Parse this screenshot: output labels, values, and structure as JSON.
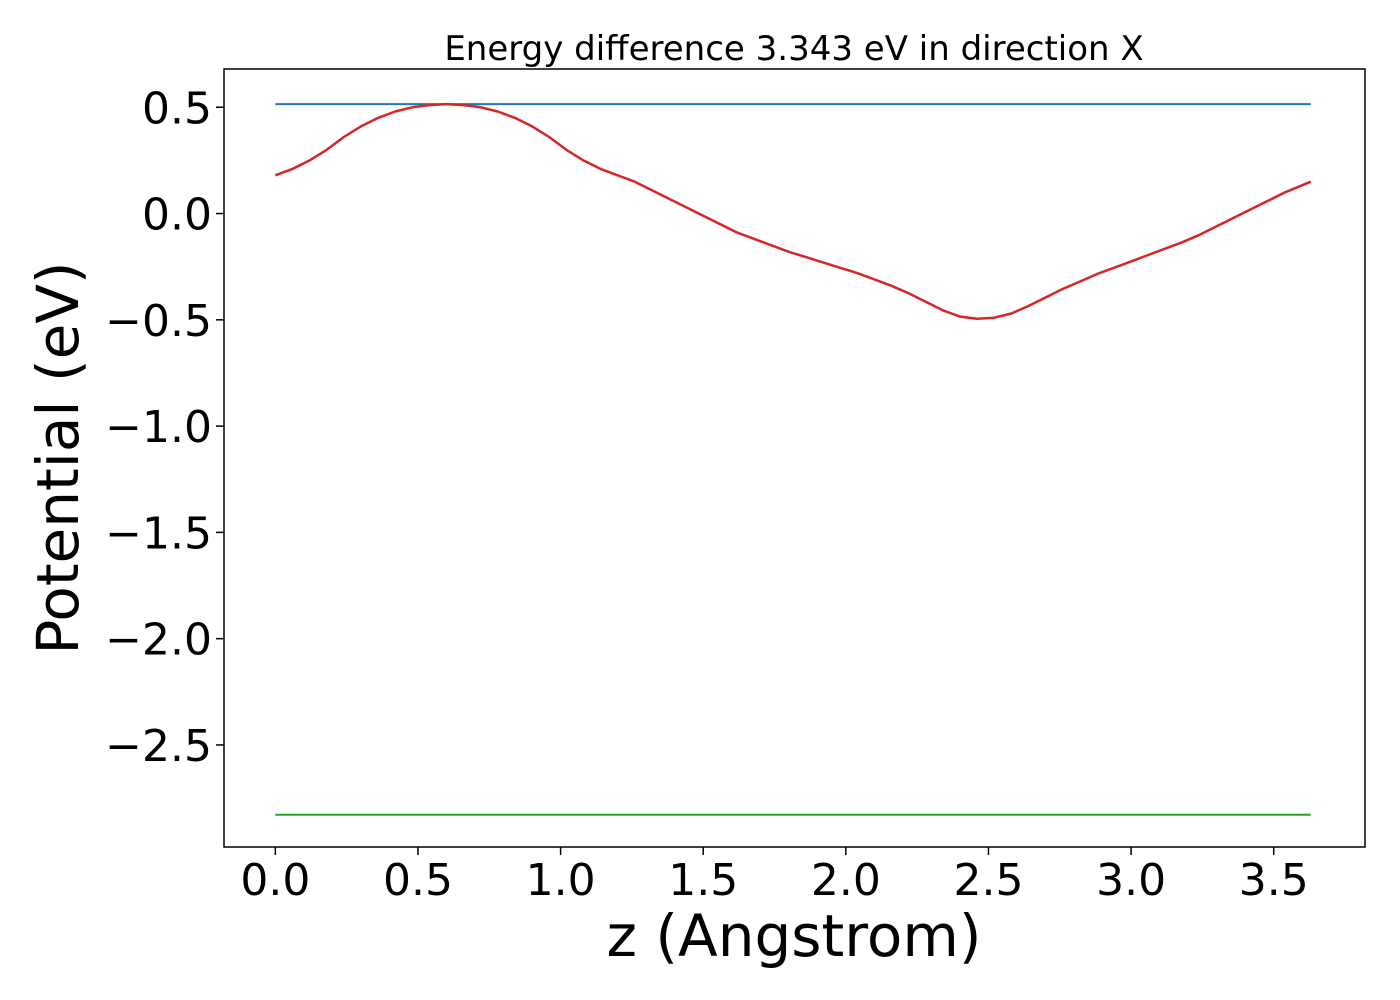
{
  "chart_data": {
    "type": "line",
    "title": "Energy difference 3.343 eV in direction X",
    "xlabel": "z (Angstrom)",
    "ylabel": "Potential (eV)",
    "xlim": [
      -0.18,
      3.82
    ],
    "ylim": [
      -2.98,
      0.68
    ],
    "xticks": [
      0.0,
      0.5,
      1.0,
      1.5,
      2.0,
      2.5,
      3.0,
      3.5
    ],
    "yticks": [
      0.5,
      0.0,
      -0.5,
      -1.0,
      -1.5,
      -2.0,
      -2.5
    ],
    "xtick_labels": [
      "0.0",
      "0.5",
      "1.0",
      "1.5",
      "2.0",
      "2.5",
      "3.0",
      "3.5"
    ],
    "ytick_labels": [
      "0.5",
      "0.0",
      "−0.5",
      "−1.0",
      "−1.5",
      "−2.0",
      "−2.5"
    ],
    "grid": false,
    "series": [
      {
        "color": "#1f77b4",
        "x": [
          0.0,
          3.63
        ],
        "y": [
          0.515,
          0.515
        ]
      },
      {
        "color": "#2ca02c",
        "x": [
          0.0,
          3.63
        ],
        "y": [
          -2.828,
          -2.828
        ]
      },
      {
        "color": "#d62728",
        "x": [
          0.0,
          0.06,
          0.12,
          0.18,
          0.24,
          0.3,
          0.36,
          0.42,
          0.48,
          0.54,
          0.6,
          0.66,
          0.72,
          0.78,
          0.84,
          0.9,
          0.96,
          1.02,
          1.08,
          1.14,
          1.2,
          1.26,
          1.32,
          1.38,
          1.44,
          1.5,
          1.56,
          1.62,
          1.68,
          1.74,
          1.8,
          1.86,
          1.92,
          1.98,
          2.04,
          2.1,
          2.16,
          2.22,
          2.28,
          2.34,
          2.4,
          2.46,
          2.52,
          2.58,
          2.64,
          2.7,
          2.76,
          2.82,
          2.88,
          2.94,
          3.0,
          3.06,
          3.12,
          3.18,
          3.24,
          3.3,
          3.36,
          3.42,
          3.48,
          3.54,
          3.63
        ],
        "y": [
          0.18,
          0.21,
          0.25,
          0.3,
          0.36,
          0.41,
          0.45,
          0.48,
          0.5,
          0.51,
          0.515,
          0.51,
          0.5,
          0.48,
          0.45,
          0.41,
          0.36,
          0.3,
          0.25,
          0.21,
          0.18,
          0.15,
          0.11,
          0.07,
          0.03,
          -0.01,
          -0.05,
          -0.09,
          -0.12,
          -0.15,
          -0.18,
          -0.205,
          -0.23,
          -0.255,
          -0.28,
          -0.31,
          -0.34,
          -0.375,
          -0.415,
          -0.455,
          -0.485,
          -0.495,
          -0.49,
          -0.47,
          -0.435,
          -0.395,
          -0.355,
          -0.32,
          -0.285,
          -0.255,
          -0.225,
          -0.195,
          -0.165,
          -0.135,
          -0.1,
          -0.06,
          -0.02,
          0.02,
          0.06,
          0.1,
          0.15
        ]
      }
    ]
  }
}
